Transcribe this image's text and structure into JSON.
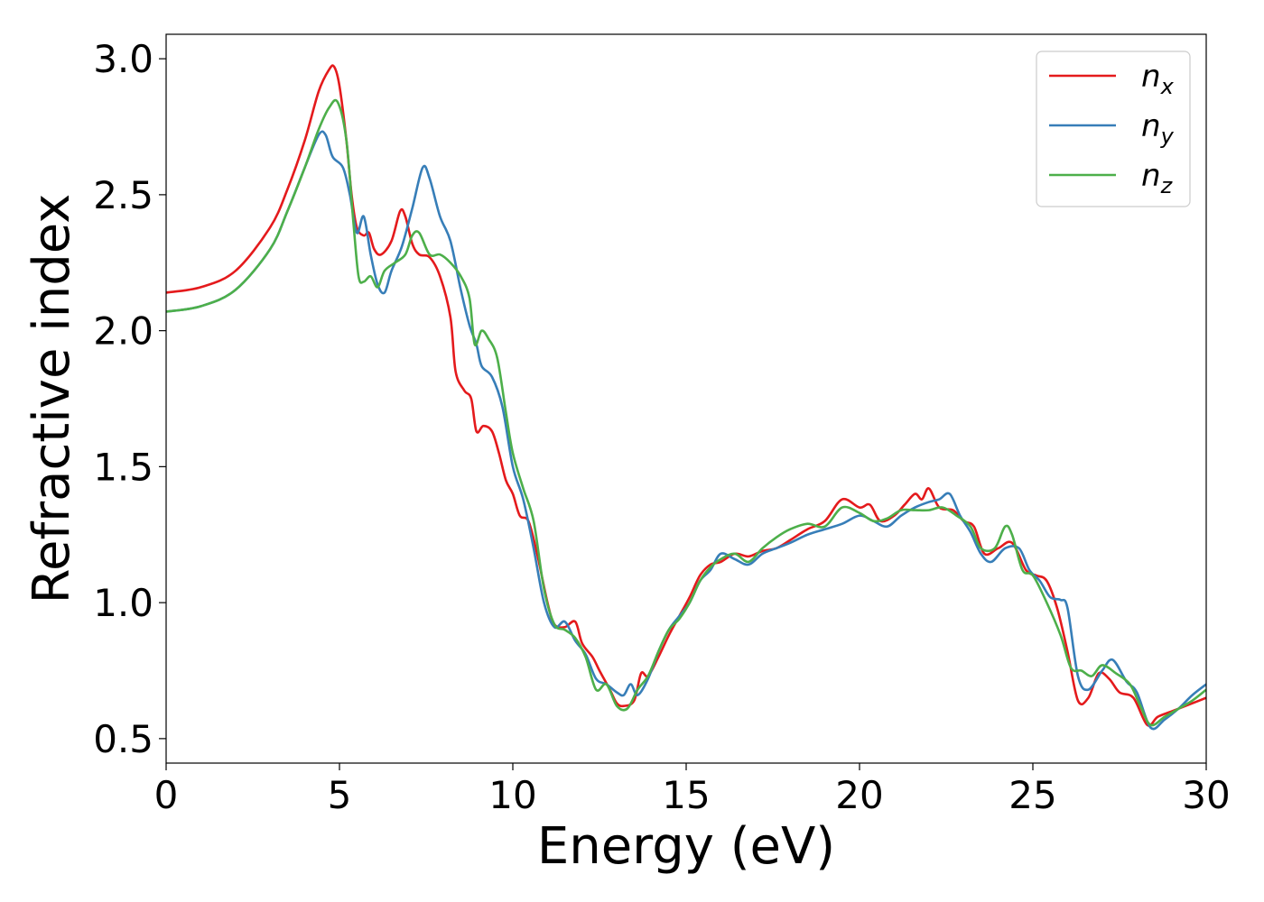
{
  "chart_data": {
    "type": "line",
    "title": "",
    "xlabel": "Energy (eV)",
    "ylabel": "Refractive index",
    "xlim": [
      0,
      30
    ],
    "ylim": [
      0.41,
      3.09
    ],
    "xticks": [
      0,
      5,
      10,
      15,
      20,
      25,
      30
    ],
    "xtick_labels": [
      "0",
      "5",
      "10",
      "15",
      "20",
      "25",
      "30"
    ],
    "yticks": [
      0.5,
      1.0,
      1.5,
      2.0,
      2.5,
      3.0
    ],
    "ytick_labels": [
      "0.5",
      "1.0",
      "1.5",
      "2.0",
      "2.5",
      "3.0"
    ],
    "grid": false,
    "legend": "top-right",
    "series": [
      {
        "name": "n",
        "subscript": "x",
        "color": "#e41a1c",
        "points": [
          [
            0,
            2.14
          ],
          [
            1,
            2.16
          ],
          [
            2,
            2.22
          ],
          [
            3,
            2.38
          ],
          [
            3.5,
            2.52
          ],
          [
            4,
            2.7
          ],
          [
            4.4,
            2.88
          ],
          [
            4.7,
            2.96
          ],
          [
            4.85,
            2.97
          ],
          [
            5.0,
            2.9
          ],
          [
            5.2,
            2.7
          ],
          [
            5.35,
            2.5
          ],
          [
            5.5,
            2.38
          ],
          [
            5.7,
            2.35
          ],
          [
            5.85,
            2.36
          ],
          [
            6.0,
            2.3
          ],
          [
            6.2,
            2.28
          ],
          [
            6.5,
            2.33
          ],
          [
            6.75,
            2.44
          ],
          [
            6.9,
            2.42
          ],
          [
            7.1,
            2.32
          ],
          [
            7.3,
            2.28
          ],
          [
            7.6,
            2.27
          ],
          [
            7.9,
            2.2
          ],
          [
            8.2,
            2.05
          ],
          [
            8.35,
            1.85
          ],
          [
            8.6,
            1.78
          ],
          [
            8.8,
            1.75
          ],
          [
            8.95,
            1.63
          ],
          [
            9.15,
            1.65
          ],
          [
            9.4,
            1.63
          ],
          [
            9.6,
            1.55
          ],
          [
            9.8,
            1.45
          ],
          [
            10.0,
            1.4
          ],
          [
            10.2,
            1.32
          ],
          [
            10.45,
            1.3
          ],
          [
            10.7,
            1.18
          ],
          [
            11.0,
            1.0
          ],
          [
            11.2,
            0.92
          ],
          [
            11.5,
            0.91
          ],
          [
            11.8,
            0.93
          ],
          [
            12.0,
            0.85
          ],
          [
            12.3,
            0.8
          ],
          [
            12.5,
            0.75
          ],
          [
            12.8,
            0.68
          ],
          [
            13.0,
            0.63
          ],
          [
            13.2,
            0.62
          ],
          [
            13.5,
            0.64
          ],
          [
            13.7,
            0.74
          ],
          [
            13.9,
            0.73
          ],
          [
            14.2,
            0.8
          ],
          [
            14.5,
            0.88
          ],
          [
            14.8,
            0.95
          ],
          [
            15.1,
            1.02
          ],
          [
            15.4,
            1.1
          ],
          [
            15.7,
            1.14
          ],
          [
            16.0,
            1.15
          ],
          [
            16.4,
            1.18
          ],
          [
            16.8,
            1.17
          ],
          [
            17.2,
            1.19
          ],
          [
            17.6,
            1.2
          ],
          [
            18.0,
            1.23
          ],
          [
            18.5,
            1.27
          ],
          [
            19.0,
            1.3
          ],
          [
            19.5,
            1.38
          ],
          [
            20.0,
            1.35
          ],
          [
            20.3,
            1.36
          ],
          [
            20.6,
            1.3
          ],
          [
            21.0,
            1.32
          ],
          [
            21.3,
            1.36
          ],
          [
            21.6,
            1.4
          ],
          [
            21.8,
            1.38
          ],
          [
            22.0,
            1.42
          ],
          [
            22.3,
            1.35
          ],
          [
            22.7,
            1.34
          ],
          [
            23.0,
            1.3
          ],
          [
            23.3,
            1.28
          ],
          [
            23.6,
            1.18
          ],
          [
            24.0,
            1.2
          ],
          [
            24.4,
            1.22
          ],
          [
            24.8,
            1.12
          ],
          [
            25.1,
            1.1
          ],
          [
            25.4,
            1.08
          ],
          [
            25.7,
            0.98
          ],
          [
            26.0,
            0.82
          ],
          [
            26.3,
            0.64
          ],
          [
            26.6,
            0.65
          ],
          [
            26.9,
            0.74
          ],
          [
            27.2,
            0.72
          ],
          [
            27.5,
            0.67
          ],
          [
            27.9,
            0.65
          ],
          [
            28.3,
            0.55
          ],
          [
            28.6,
            0.58
          ],
          [
            29.0,
            0.6
          ],
          [
            29.4,
            0.62
          ],
          [
            29.8,
            0.64
          ],
          [
            30.0,
            0.65
          ]
        ]
      },
      {
        "name": "n",
        "subscript": "y",
        "color": "#377eb8",
        "points": [
          [
            0,
            2.07
          ],
          [
            1,
            2.09
          ],
          [
            2,
            2.15
          ],
          [
            3,
            2.3
          ],
          [
            3.5,
            2.44
          ],
          [
            4,
            2.6
          ],
          [
            4.4,
            2.72
          ],
          [
            4.6,
            2.72
          ],
          [
            4.8,
            2.64
          ],
          [
            5.1,
            2.6
          ],
          [
            5.3,
            2.5
          ],
          [
            5.5,
            2.36
          ],
          [
            5.7,
            2.42
          ],
          [
            5.9,
            2.28
          ],
          [
            6.1,
            2.17
          ],
          [
            6.3,
            2.14
          ],
          [
            6.5,
            2.22
          ],
          [
            6.8,
            2.31
          ],
          [
            7.1,
            2.45
          ],
          [
            7.4,
            2.6
          ],
          [
            7.6,
            2.56
          ],
          [
            7.9,
            2.42
          ],
          [
            8.2,
            2.33
          ],
          [
            8.5,
            2.15
          ],
          [
            8.75,
            2.02
          ],
          [
            8.95,
            1.95
          ],
          [
            9.1,
            1.87
          ],
          [
            9.4,
            1.83
          ],
          [
            9.7,
            1.72
          ],
          [
            10.0,
            1.5
          ],
          [
            10.3,
            1.38
          ],
          [
            10.6,
            1.2
          ],
          [
            10.9,
            1.0
          ],
          [
            11.2,
            0.91
          ],
          [
            11.5,
            0.93
          ],
          [
            11.8,
            0.86
          ],
          [
            12.1,
            0.81
          ],
          [
            12.4,
            0.72
          ],
          [
            12.7,
            0.7
          ],
          [
            13.0,
            0.67
          ],
          [
            13.2,
            0.66
          ],
          [
            13.4,
            0.7
          ],
          [
            13.6,
            0.66
          ],
          [
            13.9,
            0.72
          ],
          [
            14.2,
            0.82
          ],
          [
            14.5,
            0.9
          ],
          [
            14.8,
            0.95
          ],
          [
            15.1,
            1.0
          ],
          [
            15.4,
            1.08
          ],
          [
            15.7,
            1.12
          ],
          [
            16.0,
            1.18
          ],
          [
            16.4,
            1.16
          ],
          [
            16.8,
            1.14
          ],
          [
            17.2,
            1.18
          ],
          [
            17.6,
            1.2
          ],
          [
            18.0,
            1.22
          ],
          [
            18.5,
            1.25
          ],
          [
            19.0,
            1.27
          ],
          [
            19.5,
            1.29
          ],
          [
            20.0,
            1.32
          ],
          [
            20.4,
            1.3
          ],
          [
            20.8,
            1.28
          ],
          [
            21.2,
            1.32
          ],
          [
            21.6,
            1.35
          ],
          [
            22.0,
            1.37
          ],
          [
            22.3,
            1.38
          ],
          [
            22.6,
            1.4
          ],
          [
            22.9,
            1.32
          ],
          [
            23.2,
            1.26
          ],
          [
            23.5,
            1.18
          ],
          [
            23.8,
            1.15
          ],
          [
            24.2,
            1.2
          ],
          [
            24.6,
            1.2
          ],
          [
            24.9,
            1.12
          ],
          [
            25.2,
            1.08
          ],
          [
            25.5,
            1.02
          ],
          [
            25.8,
            1.01
          ],
          [
            26.0,
            0.98
          ],
          [
            26.3,
            0.73
          ],
          [
            26.6,
            0.68
          ],
          [
            27.0,
            0.75
          ],
          [
            27.3,
            0.79
          ],
          [
            27.7,
            0.71
          ],
          [
            28.0,
            0.67
          ],
          [
            28.4,
            0.54
          ],
          [
            28.8,
            0.57
          ],
          [
            29.2,
            0.61
          ],
          [
            29.6,
            0.66
          ],
          [
            30.0,
            0.7
          ]
        ]
      },
      {
        "name": "n",
        "subscript": "z",
        "color": "#4daf4a",
        "points": [
          [
            0,
            2.07
          ],
          [
            1,
            2.09
          ],
          [
            2,
            2.15
          ],
          [
            3,
            2.3
          ],
          [
            3.5,
            2.44
          ],
          [
            4,
            2.6
          ],
          [
            4.4,
            2.74
          ],
          [
            4.7,
            2.82
          ],
          [
            4.95,
            2.84
          ],
          [
            5.2,
            2.7
          ],
          [
            5.4,
            2.4
          ],
          [
            5.55,
            2.2
          ],
          [
            5.7,
            2.18
          ],
          [
            5.9,
            2.2
          ],
          [
            6.1,
            2.16
          ],
          [
            6.3,
            2.22
          ],
          [
            6.6,
            2.25
          ],
          [
            6.9,
            2.28
          ],
          [
            7.1,
            2.35
          ],
          [
            7.3,
            2.36
          ],
          [
            7.6,
            2.28
          ],
          [
            7.9,
            2.28
          ],
          [
            8.2,
            2.25
          ],
          [
            8.5,
            2.2
          ],
          [
            8.75,
            2.12
          ],
          [
            8.9,
            1.95
          ],
          [
            9.1,
            2.0
          ],
          [
            9.3,
            1.97
          ],
          [
            9.55,
            1.9
          ],
          [
            9.8,
            1.7
          ],
          [
            10.0,
            1.55
          ],
          [
            10.3,
            1.42
          ],
          [
            10.6,
            1.3
          ],
          [
            10.9,
            1.05
          ],
          [
            11.2,
            0.92
          ],
          [
            11.5,
            0.9
          ],
          [
            11.8,
            0.87
          ],
          [
            12.1,
            0.8
          ],
          [
            12.4,
            0.68
          ],
          [
            12.7,
            0.7
          ],
          [
            13.0,
            0.62
          ],
          [
            13.3,
            0.61
          ],
          [
            13.6,
            0.68
          ],
          [
            13.9,
            0.73
          ],
          [
            14.2,
            0.82
          ],
          [
            14.5,
            0.9
          ],
          [
            14.8,
            0.94
          ],
          [
            15.1,
            1.0
          ],
          [
            15.4,
            1.08
          ],
          [
            15.7,
            1.13
          ],
          [
            16.0,
            1.16
          ],
          [
            16.4,
            1.18
          ],
          [
            16.8,
            1.15
          ],
          [
            17.2,
            1.2
          ],
          [
            17.6,
            1.24
          ],
          [
            18.0,
            1.27
          ],
          [
            18.5,
            1.29
          ],
          [
            19.0,
            1.28
          ],
          [
            19.5,
            1.35
          ],
          [
            20.0,
            1.33
          ],
          [
            20.4,
            1.3
          ],
          [
            20.8,
            1.31
          ],
          [
            21.2,
            1.34
          ],
          [
            21.6,
            1.34
          ],
          [
            22.0,
            1.34
          ],
          [
            22.4,
            1.35
          ],
          [
            22.8,
            1.32
          ],
          [
            23.2,
            1.28
          ],
          [
            23.5,
            1.2
          ],
          [
            23.9,
            1.2
          ],
          [
            24.2,
            1.28
          ],
          [
            24.4,
            1.25
          ],
          [
            24.7,
            1.12
          ],
          [
            25.0,
            1.1
          ],
          [
            25.4,
            1.0
          ],
          [
            25.8,
            0.88
          ],
          [
            26.1,
            0.76
          ],
          [
            26.4,
            0.75
          ],
          [
            26.7,
            0.73
          ],
          [
            27.0,
            0.77
          ],
          [
            27.4,
            0.74
          ],
          [
            27.8,
            0.7
          ],
          [
            28.1,
            0.62
          ],
          [
            28.4,
            0.55
          ],
          [
            28.8,
            0.58
          ],
          [
            29.2,
            0.61
          ],
          [
            29.6,
            0.64
          ],
          [
            30.0,
            0.68
          ]
        ]
      }
    ]
  }
}
